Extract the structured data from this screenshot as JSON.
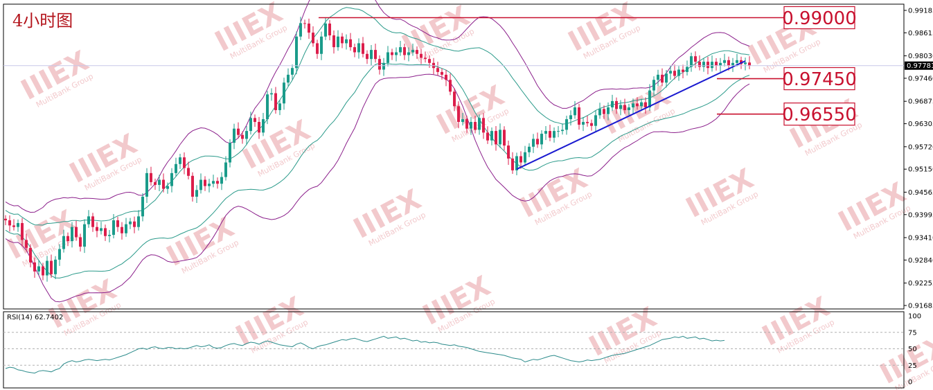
{
  "chart_title": "4小时图",
  "watermark": {
    "brand": "IIIEX",
    "sub": "MultiBank Group"
  },
  "colors": {
    "bull": "#1a9b8a",
    "bear": "#dc1e4b",
    "band_outer": "#8b1f8b",
    "band_inner": "#2a9a8a",
    "trendline": "#1a1ad0",
    "level": "#c8102e",
    "rsi": "#2a8a8a"
  },
  "chart_data": [
    {
      "type": "candlestick",
      "title": "",
      "y_ticks": [
        "0.99185",
        "0.98615",
        "0.98030",
        "0.97460",
        "0.96875",
        "0.96305",
        "0.95720",
        "0.95150",
        "0.94565",
        "0.93995",
        "0.93410",
        "0.92840",
        "0.92255",
        "0.91685"
      ],
      "ylim": [
        0.91685,
        0.99185
      ],
      "current_price": "0.97781",
      "levels": [
        {
          "value": 0.99,
          "label": "0.99000"
        },
        {
          "value": 0.9745,
          "label": "0.97450"
        },
        {
          "value": 0.9655,
          "label": "0.96550"
        }
      ],
      "trendline": {
        "start": {
          "index": 123,
          "price": 0.9515
        },
        "end": {
          "index": 178,
          "price": 0.979
        }
      },
      "close": [
        0.9385,
        0.9372,
        0.9368,
        0.9378,
        0.9335,
        0.9315,
        0.9278,
        0.9255,
        0.9268,
        0.9245,
        0.9282,
        0.9248,
        0.9285,
        0.9312,
        0.9345,
        0.9332,
        0.9368,
        0.9342,
        0.9318,
        0.9375,
        0.9395,
        0.9368,
        0.9358,
        0.9365,
        0.9345,
        0.9348,
        0.9385,
        0.9368,
        0.9352,
        0.9375,
        0.9382,
        0.9368,
        0.9395,
        0.9445,
        0.9505,
        0.9482,
        0.9475,
        0.9488,
        0.9465,
        0.9472,
        0.9505,
        0.9528,
        0.9545,
        0.9518,
        0.9498,
        0.9445,
        0.9462,
        0.9488,
        0.9472,
        0.9478,
        0.9485,
        0.9478,
        0.9495,
        0.9532,
        0.9582,
        0.9618,
        0.9602,
        0.9592,
        0.9612,
        0.9645,
        0.9635,
        0.9608,
        0.9642,
        0.9705,
        0.9708,
        0.9665,
        0.9682,
        0.9735,
        0.9755,
        0.9772,
        0.9852,
        0.9886,
        0.9885,
        0.9862,
        0.9835,
        0.9808,
        0.9852,
        0.9885,
        0.9855,
        0.9825,
        0.9852,
        0.9835,
        0.9845,
        0.9825,
        0.9812,
        0.9835,
        0.9808,
        0.9795,
        0.9818,
        0.9795,
        0.9768,
        0.9785,
        0.9812,
        0.9805,
        0.9812,
        0.9825,
        0.9805,
        0.9812,
        0.9818,
        0.9808,
        0.9798,
        0.9795,
        0.9785,
        0.9772,
        0.9762,
        0.9755,
        0.9742,
        0.9712,
        0.9675,
        0.9635,
        0.9642,
        0.9618,
        0.9635,
        0.9615,
        0.9645,
        0.9608,
        0.9588,
        0.9612,
        0.9578,
        0.9615,
        0.9575,
        0.9542,
        0.9512,
        0.9548,
        0.9532,
        0.9558,
        0.9572,
        0.9592,
        0.9578,
        0.9605,
        0.9612,
        0.9595,
        0.9612,
        0.9612,
        0.9615,
        0.9642,
        0.9652,
        0.9672,
        0.9628,
        0.9635,
        0.9632,
        0.9625,
        0.9652,
        0.9668,
        0.9655,
        0.9672,
        0.9688,
        0.9668,
        0.9678,
        0.9665,
        0.9672,
        0.9682,
        0.9675,
        0.9685,
        0.9672,
        0.9715,
        0.9742,
        0.9755,
        0.9735,
        0.9758,
        0.9765,
        0.9752,
        0.9768,
        0.9762,
        0.9775,
        0.9802,
        0.9788,
        0.9775,
        0.9788,
        0.9772,
        0.9788,
        0.9778,
        0.9785,
        0.9792,
        0.9778,
        0.9785,
        0.9792,
        0.9782,
        0.9786,
        0.9778
      ]
    },
    {
      "type": "line",
      "title": "",
      "legend": "RSI(14) 62.7402",
      "y_ticks": [
        "100",
        "75",
        "50",
        "25",
        "0"
      ],
      "ylim": [
        0,
        100
      ],
      "levels": [
        75,
        50,
        25
      ],
      "values": [
        20,
        22,
        21,
        18,
        17,
        15,
        14,
        13,
        16,
        17,
        16,
        15,
        18,
        20,
        27,
        30,
        32,
        30,
        31,
        33,
        34,
        33,
        32,
        33,
        34,
        33,
        35,
        37,
        39,
        41,
        44,
        47,
        50,
        51,
        49,
        52,
        53,
        51,
        50,
        52,
        52,
        50,
        51,
        50,
        51,
        53,
        55,
        53,
        54,
        56,
        52,
        51,
        52,
        55,
        57,
        58,
        56,
        55,
        58,
        60,
        59,
        57,
        60,
        62,
        60,
        58,
        56,
        55,
        54,
        53,
        57,
        59,
        56,
        52,
        50,
        53,
        55,
        56,
        58,
        60,
        62,
        64,
        63,
        65,
        66,
        64,
        62,
        61,
        63,
        65,
        67,
        69,
        66,
        67,
        68,
        65,
        66,
        64,
        62,
        63,
        60,
        61,
        59,
        60,
        59,
        57,
        56,
        55,
        56,
        54,
        53,
        52,
        50,
        48,
        46,
        45,
        44,
        43,
        42,
        41,
        40,
        38,
        36,
        35,
        34,
        30,
        32,
        34,
        33,
        35,
        37,
        39,
        40,
        38,
        36,
        34,
        32,
        31,
        30,
        31,
        33,
        32,
        33,
        34,
        36,
        38,
        40,
        41,
        42,
        43,
        45,
        47,
        49,
        51,
        53,
        55,
        58,
        61,
        64,
        65,
        66,
        68,
        67,
        69,
        66,
        67,
        68,
        65,
        66,
        64,
        62,
        63,
        62,
        62.7
      ]
    }
  ]
}
